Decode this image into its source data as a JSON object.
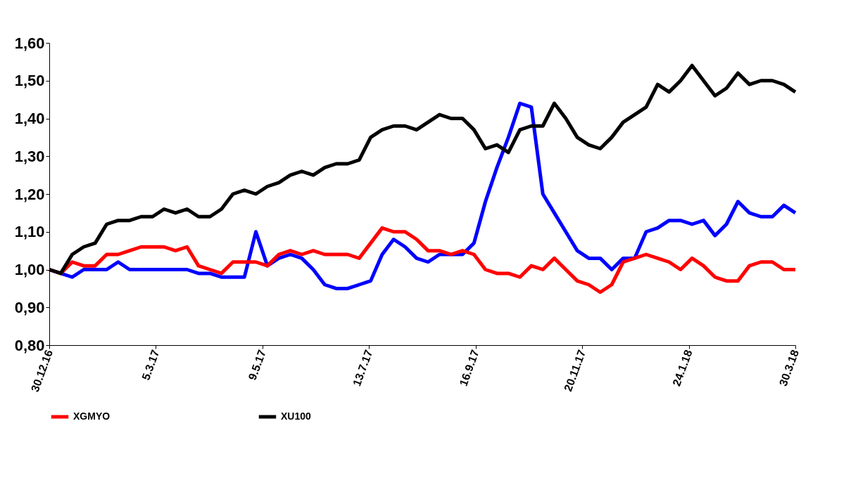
{
  "chart_data": {
    "type": "line",
    "x": [
      "2016-12-30",
      "2017-01-06",
      "2017-01-13",
      "2017-01-20",
      "2017-01-27",
      "2017-02-03",
      "2017-02-10",
      "2017-02-17",
      "2017-02-24",
      "2017-03-03",
      "2017-03-10",
      "2017-03-17",
      "2017-03-24",
      "2017-03-31",
      "2017-04-07",
      "2017-04-14",
      "2017-04-21",
      "2017-04-28",
      "2017-05-05",
      "2017-05-12",
      "2017-05-19",
      "2017-05-26",
      "2017-06-02",
      "2017-06-09",
      "2017-06-16",
      "2017-06-23",
      "2017-06-30",
      "2017-07-07",
      "2017-07-14",
      "2017-07-21",
      "2017-07-28",
      "2017-08-04",
      "2017-08-11",
      "2017-08-18",
      "2017-08-25",
      "2017-09-01",
      "2017-09-08",
      "2017-09-15",
      "2017-09-22",
      "2017-09-29",
      "2017-10-06",
      "2017-10-13",
      "2017-10-20",
      "2017-10-27",
      "2017-11-03",
      "2017-11-10",
      "2017-11-17",
      "2017-11-24",
      "2017-12-01",
      "2017-12-08",
      "2017-12-15",
      "2017-12-22",
      "2017-12-29",
      "2018-01-05",
      "2018-01-12",
      "2018-01-19",
      "2018-01-26",
      "2018-02-02",
      "2018-02-09",
      "2018-02-16",
      "2018-02-23",
      "2018-03-02",
      "2018-03-09",
      "2018-03-16",
      "2018-03-23",
      "2018-03-30"
    ],
    "series": [
      {
        "color": "#0000ff",
        "values": [
          1.0,
          0.99,
          0.98,
          1.0,
          1.0,
          1.0,
          1.02,
          1.0,
          1.0,
          1.0,
          1.0,
          1.0,
          1.0,
          0.99,
          0.99,
          0.98,
          0.98,
          0.98,
          1.1,
          1.01,
          1.03,
          1.04,
          1.03,
          1.0,
          0.96,
          0.95,
          0.95,
          0.96,
          0.97,
          1.04,
          1.08,
          1.06,
          1.03,
          1.02,
          1.04,
          1.04,
          1.04,
          1.07,
          1.18,
          1.27,
          1.35,
          1.44,
          1.43,
          1.2,
          1.15,
          1.1,
          1.05,
          1.03,
          1.03,
          1.0,
          1.03,
          1.03,
          1.1,
          1.11,
          1.13,
          1.13,
          1.12,
          1.13,
          1.09,
          1.12,
          1.18,
          1.15,
          1.14,
          1.14,
          1.17,
          1.15
        ]
      },
      {
        "name": "XGMYO",
        "color": "#ff0000",
        "values": [
          1.0,
          0.99,
          1.02,
          1.01,
          1.01,
          1.04,
          1.04,
          1.05,
          1.06,
          1.06,
          1.06,
          1.05,
          1.06,
          1.01,
          1.0,
          0.99,
          1.02,
          1.02,
          1.02,
          1.01,
          1.04,
          1.05,
          1.04,
          1.05,
          1.04,
          1.04,
          1.04,
          1.03,
          1.07,
          1.11,
          1.1,
          1.1,
          1.08,
          1.05,
          1.05,
          1.04,
          1.05,
          1.04,
          1.0,
          0.99,
          0.99,
          0.98,
          1.01,
          1.0,
          1.03,
          1.0,
          0.97,
          0.96,
          0.94,
          0.96,
          1.02,
          1.03,
          1.04,
          1.03,
          1.02,
          1.0,
          1.03,
          1.01,
          0.98,
          0.97,
          0.97,
          1.01,
          1.02,
          1.02,
          1.0,
          1.0
        ]
      },
      {
        "name": "XU100",
        "color": "#000000",
        "values": [
          1.0,
          0.99,
          1.04,
          1.06,
          1.07,
          1.12,
          1.13,
          1.13,
          1.14,
          1.14,
          1.16,
          1.15,
          1.16,
          1.14,
          1.14,
          1.16,
          1.2,
          1.21,
          1.2,
          1.22,
          1.23,
          1.25,
          1.26,
          1.25,
          1.27,
          1.28,
          1.28,
          1.29,
          1.35,
          1.37,
          1.38,
          1.38,
          1.37,
          1.39,
          1.41,
          1.4,
          1.4,
          1.37,
          1.32,
          1.33,
          1.31,
          1.37,
          1.38,
          1.38,
          1.44,
          1.4,
          1.35,
          1.33,
          1.32,
          1.35,
          1.39,
          1.41,
          1.43,
          1.49,
          1.47,
          1.5,
          1.54,
          1.5,
          1.46,
          1.48,
          1.52,
          1.49,
          1.5,
          1.5,
          1.49,
          1.47
        ]
      }
    ],
    "xlim": [
      "2016-12-30",
      "2018-03-30"
    ],
    "xticks": [
      {
        "value": "2016-12-30",
        "label": "30.12.16"
      },
      {
        "value": "2017-03-05",
        "label": "5.3.17"
      },
      {
        "value": "2017-05-09",
        "label": "9.5.17"
      },
      {
        "value": "2017-07-13",
        "label": "13.7.17"
      },
      {
        "value": "2017-09-16",
        "label": "16.9.17"
      },
      {
        "value": "2017-11-20",
        "label": "20.11.17"
      },
      {
        "value": "2018-01-24",
        "label": "24.1.18"
      },
      {
        "value": "2018-03-30",
        "label": "30.3.18"
      }
    ],
    "ylim": [
      0.8,
      1.6
    ],
    "yticks": [
      {
        "value": 0.8,
        "label": "0,80"
      },
      {
        "value": 0.9,
        "label": "0,90"
      },
      {
        "value": 1.0,
        "label": "1,00"
      },
      {
        "value": 1.1,
        "label": "1,10"
      },
      {
        "value": 1.2,
        "label": "1,20"
      },
      {
        "value": 1.3,
        "label": "1,30"
      },
      {
        "value": 1.4,
        "label": "1,40"
      },
      {
        "value": 1.5,
        "label": "1,50"
      },
      {
        "value": 1.6,
        "label": "1,60"
      }
    ],
    "grid": false,
    "legend": "bottom",
    "marker": "none",
    "line_style": "solid"
  }
}
